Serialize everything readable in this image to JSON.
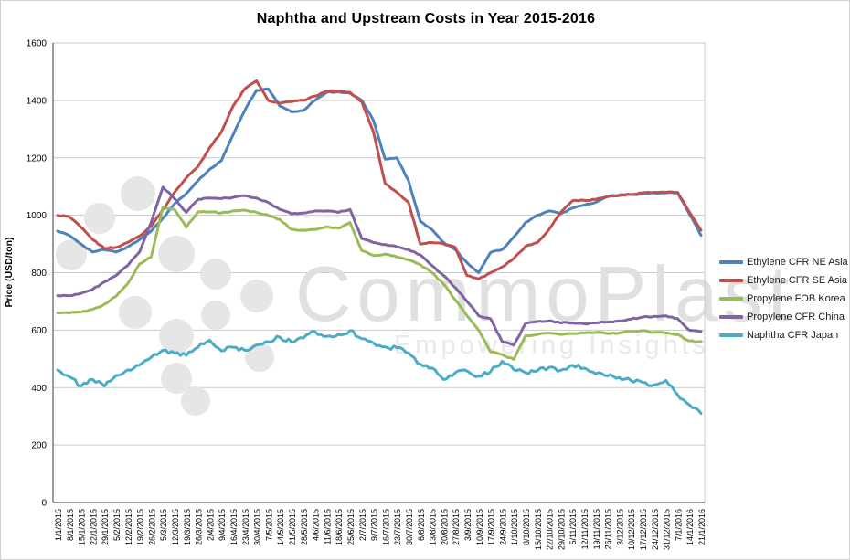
{
  "window": {
    "background": "#ffffff",
    "border_color": "#d0d0d0"
  },
  "watermark": {
    "brand": "CommoPlast",
    "tagline": "Empowering Insights",
    "brand_color": "#e0e0e0",
    "tagline_color": "#e9e9e9",
    "circle_color": "#e6e6e6"
  },
  "chart_data": {
    "type": "line",
    "title": "Naphtha and Upstream Costs in Year 2015-2016",
    "xlabel": "",
    "ylabel": "Price (USD/ton)",
    "ylim": [
      0,
      1600
    ],
    "yticks": [
      0,
      200,
      400,
      600,
      800,
      1000,
      1200,
      1400,
      1600
    ],
    "grid": "horizontal",
    "gridline_color": "#c9c9c9",
    "axis_color": "#595959",
    "legend_position": "right",
    "x": [
      "1/1/2015",
      "8/1/2015",
      "15/1/2015",
      "22/1/2015",
      "29/1/2015",
      "5/2/2015",
      "12/2/2015",
      "19/2/2015",
      "26/2/2015",
      "5/3/2015",
      "12/3/2015",
      "19/3/2015",
      "26/3/2015",
      "2/4/2015",
      "9/4/2015",
      "16/4/2015",
      "23/4/2015",
      "30/4/2015",
      "7/5/2015",
      "14/5/2015",
      "21/5/2015",
      "28/5/2015",
      "4/6/2015",
      "11/6/2015",
      "18/6/2015",
      "25/6/2015",
      "2/7/2015",
      "9/7/2015",
      "16/7/2015",
      "23/7/2015",
      "30/7/2015",
      "6/8/2015",
      "13/8/2015",
      "20/8/2015",
      "27/8/2015",
      "3/9/2015",
      "10/9/2015",
      "17/9/2015",
      "24/9/2015",
      "1/10/2015",
      "8/10/2015",
      "15/10/2015",
      "22/10/2015",
      "29/10/2015",
      "5/11/2015",
      "12/11/2015",
      "19/11/2015",
      "26/11/2015",
      "3/12/2015",
      "10/12/2015",
      "17/12/2015",
      "24/12/2015",
      "31/12/2015",
      "7/1/2016",
      "14/1/2016",
      "21/1/2016"
    ],
    "series": [
      {
        "name": "Ethylene CFR NE Asia",
        "color": "#4F81BD",
        "volatility": 2,
        "values": [
          945,
          930,
          900,
          872,
          880,
          872,
          890,
          915,
          945,
          990,
          1040,
          1075,
          1120,
          1160,
          1190,
          1280,
          1365,
          1435,
          1440,
          1380,
          1360,
          1365,
          1400,
          1428,
          1430,
          1425,
          1400,
          1330,
          1195,
          1200,
          1120,
          980,
          950,
          905,
          880,
          835,
          800,
          870,
          880,
          925,
          975,
          1000,
          1015,
          1005,
          1025,
          1035,
          1045,
          1065,
          1070,
          1072,
          1075,
          1078,
          1078,
          1078,
          1005,
          930
        ]
      },
      {
        "name": "Ethylene CFR SE Asia",
        "color": "#C0504D",
        "volatility": 2,
        "values": [
          1000,
          995,
          958,
          915,
          885,
          888,
          905,
          928,
          962,
          1020,
          1080,
          1130,
          1170,
          1235,
          1290,
          1380,
          1440,
          1468,
          1400,
          1390,
          1395,
          1400,
          1415,
          1432,
          1432,
          1428,
          1395,
          1290,
          1110,
          1080,
          1045,
          900,
          905,
          900,
          888,
          790,
          778,
          800,
          820,
          850,
          892,
          905,
          950,
          1010,
          1050,
          1052,
          1055,
          1065,
          1068,
          1072,
          1078,
          1080,
          1080,
          1080,
          1012,
          948
        ]
      },
      {
        "name": "Propylene FOB Korea",
        "color": "#9BBB59",
        "volatility": 2,
        "values": [
          660,
          660,
          663,
          672,
          690,
          718,
          762,
          830,
          855,
          1028,
          1020,
          958,
          1012,
          1012,
          1008,
          1015,
          1018,
          1010,
          1000,
          985,
          950,
          948,
          950,
          960,
          955,
          975,
          877,
          860,
          865,
          855,
          845,
          828,
          800,
          760,
          705,
          650,
          600,
          525,
          515,
          498,
          580,
          585,
          590,
          585,
          588,
          590,
          592,
          588,
          590,
          595,
          598,
          592,
          590,
          585,
          562,
          560
        ]
      },
      {
        "name": "Propylene CFR China",
        "color": "#8064A2",
        "volatility": 2,
        "values": [
          720,
          720,
          728,
          742,
          768,
          790,
          825,
          872,
          975,
          1098,
          1058,
          1010,
          1055,
          1060,
          1058,
          1062,
          1068,
          1060,
          1045,
          1020,
          1005,
          1008,
          1015,
          1015,
          1010,
          1020,
          919,
          905,
          898,
          890,
          880,
          862,
          825,
          790,
          748,
          700,
          650,
          640,
          560,
          548,
          623,
          630,
          632,
          625,
          625,
          622,
          625,
          628,
          632,
          638,
          645,
          648,
          650,
          640,
          600,
          595
        ]
      },
      {
        "name": "Naphtha CFR Japan",
        "color": "#4BACC6",
        "volatility": 7,
        "values": [
          462,
          438,
          405,
          428,
          405,
          442,
          462,
          478,
          505,
          530,
          520,
          512,
          540,
          565,
          528,
          540,
          530,
          548,
          560,
          575,
          558,
          572,
          595,
          578,
          585,
          598,
          570,
          555,
          542,
          538,
          520,
          482,
          468,
          428,
          452,
          458,
          440,
          455,
          492,
          462,
          452,
          458,
          470,
          460,
          478,
          468,
          448,
          440,
          435,
          425,
          418,
          410,
          425,
          375,
          340,
          310
        ]
      }
    ]
  }
}
